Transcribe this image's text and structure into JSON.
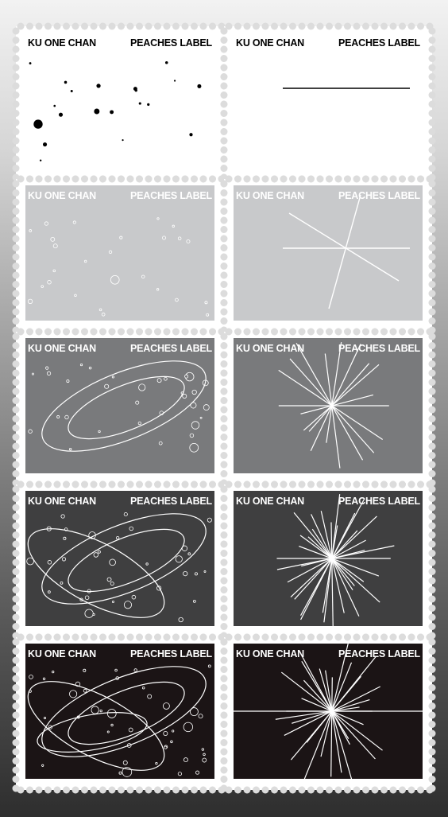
{
  "brand_left": "KU ONE CHAN",
  "brand_right": "PEACHES LABEL",
  "stamp_colors": [
    "#ffffff",
    "#c8c9cb",
    "#797a7c",
    "#3f3f40",
    "#1b1415"
  ],
  "ink_colors": [
    "#000000",
    "#ffffff",
    "#ffffff",
    "#ffffff",
    "#ffffff"
  ],
  "text_colors": [
    "#000000",
    "#ffffff",
    "#ffffff",
    "#ffffff",
    "#ffffff"
  ],
  "rows": [
    {
      "left_art": "scattered-dots",
      "right_art": "single-line"
    },
    {
      "left_art": "scattered-circles",
      "right_art": "crossing-lines"
    },
    {
      "left_art": "orbits-two",
      "right_art": "starburst"
    },
    {
      "left_art": "orbits-three",
      "right_art": "dense-starburst"
    },
    {
      "left_art": "orbits-four",
      "right_art": "burst-with-horizon"
    }
  ]
}
